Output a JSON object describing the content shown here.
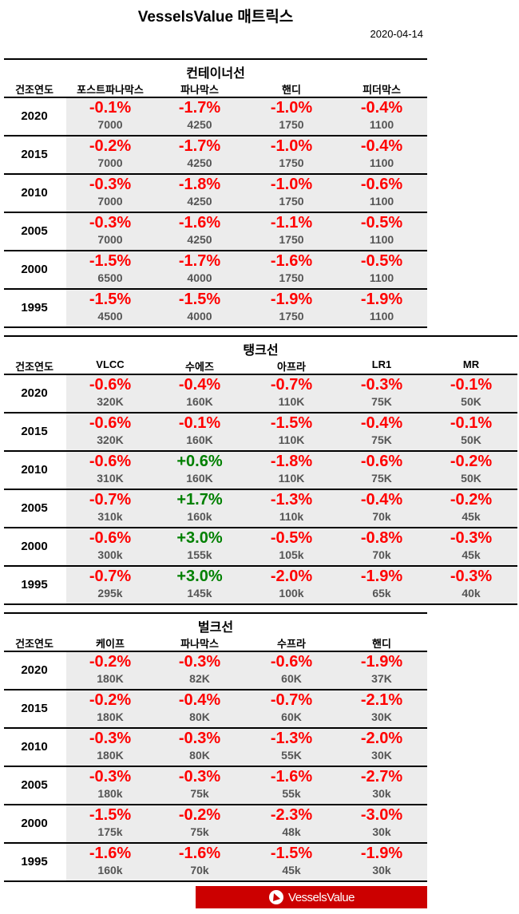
{
  "title": "VesselsValue 매트릭스",
  "date": "2020-04-14",
  "colors": {
    "negative": "#ff0000",
    "positive": "#008000",
    "band": "#ececec",
    "logo": "#cc0000"
  },
  "logo_text": "VesselsValue",
  "sections": [
    {
      "title": "컨테이너선",
      "year_header": "건조연도",
      "columns": [
        "포스트파나막스",
        "파나막스",
        "핸디",
        "피더막스"
      ],
      "rows": [
        {
          "year": "2020",
          "cells": [
            [
              "-0.1%",
              "7000"
            ],
            [
              "-1.7%",
              "4250"
            ],
            [
              "-1.0%",
              "1750"
            ],
            [
              "-0.4%",
              "1100"
            ]
          ]
        },
        {
          "year": "2015",
          "cells": [
            [
              "-0.2%",
              "7000"
            ],
            [
              "-1.7%",
              "4250"
            ],
            [
              "-1.0%",
              "1750"
            ],
            [
              "-0.4%",
              "1100"
            ]
          ]
        },
        {
          "year": "2010",
          "cells": [
            [
              "-0.3%",
              "7000"
            ],
            [
              "-1.8%",
              "4250"
            ],
            [
              "-1.0%",
              "1750"
            ],
            [
              "-0.6%",
              "1100"
            ]
          ]
        },
        {
          "year": "2005",
          "cells": [
            [
              "-0.3%",
              "7000"
            ],
            [
              "-1.6%",
              "4250"
            ],
            [
              "-1.1%",
              "1750"
            ],
            [
              "-0.5%",
              "1100"
            ]
          ]
        },
        {
          "year": "2000",
          "cells": [
            [
              "-1.5%",
              "6500"
            ],
            [
              "-1.7%",
              "4000"
            ],
            [
              "-1.6%",
              "1750"
            ],
            [
              "-0.5%",
              "1100"
            ]
          ]
        },
        {
          "year": "1995",
          "cells": [
            [
              "-1.5%",
              "4500"
            ],
            [
              "-1.5%",
              "4000"
            ],
            [
              "-1.9%",
              "1750"
            ],
            [
              "-1.9%",
              "1100"
            ]
          ]
        }
      ]
    },
    {
      "title": "탱크선",
      "year_header": "건조연도",
      "columns": [
        "VLCC",
        "수에즈",
        "아프라",
        "LR1",
        "MR"
      ],
      "rows": [
        {
          "year": "2020",
          "cells": [
            [
              "-0.6%",
              "320K"
            ],
            [
              "-0.4%",
              "160K"
            ],
            [
              "-0.7%",
              "110K"
            ],
            [
              "-0.3%",
              "75K"
            ],
            [
              "-0.1%",
              "50K"
            ]
          ]
        },
        {
          "year": "2015",
          "cells": [
            [
              "-0.6%",
              "320K"
            ],
            [
              "-0.1%",
              "160K"
            ],
            [
              "-1.5%",
              "110K"
            ],
            [
              "-0.4%",
              "75K"
            ],
            [
              "-0.1%",
              "50K"
            ]
          ]
        },
        {
          "year": "2010",
          "cells": [
            [
              "-0.6%",
              "310K"
            ],
            [
              "+0.6%",
              "160K"
            ],
            [
              "-1.8%",
              "110K"
            ],
            [
              "-0.6%",
              "75K"
            ],
            [
              "-0.2%",
              "50K"
            ]
          ]
        },
        {
          "year": "2005",
          "cells": [
            [
              "-0.7%",
              "310k"
            ],
            [
              "+1.7%",
              "160k"
            ],
            [
              "-1.3%",
              "110k"
            ],
            [
              "-0.4%",
              "70k"
            ],
            [
              "-0.2%",
              "45k"
            ]
          ]
        },
        {
          "year": "2000",
          "cells": [
            [
              "-0.6%",
              "300k"
            ],
            [
              "+3.0%",
              "155k"
            ],
            [
              "-0.5%",
              "105k"
            ],
            [
              "-0.8%",
              "70k"
            ],
            [
              "-0.3%",
              "45k"
            ]
          ]
        },
        {
          "year": "1995",
          "cells": [
            [
              "-0.7%",
              "295k"
            ],
            [
              "+3.0%",
              "145k"
            ],
            [
              "-2.0%",
              "100k"
            ],
            [
              "-1.9%",
              "65k"
            ],
            [
              "-0.3%",
              "40k"
            ]
          ]
        }
      ]
    },
    {
      "title": "벌크선",
      "year_header": "건조연도",
      "columns": [
        "케이프",
        "파나막스",
        "수프라",
        "핸디"
      ],
      "rows": [
        {
          "year": "2020",
          "cells": [
            [
              "-0.2%",
              "180K"
            ],
            [
              "-0.3%",
              "82K"
            ],
            [
              "-0.6%",
              "60K"
            ],
            [
              "-1.9%",
              "37K"
            ]
          ]
        },
        {
          "year": "2015",
          "cells": [
            [
              "-0.2%",
              "180K"
            ],
            [
              "-0.4%",
              "80K"
            ],
            [
              "-0.7%",
              "60K"
            ],
            [
              "-2.1%",
              "30K"
            ]
          ]
        },
        {
          "year": "2010",
          "cells": [
            [
              "-0.3%",
              "180K"
            ],
            [
              "-0.3%",
              "80K"
            ],
            [
              "-1.3%",
              "55K"
            ],
            [
              "-2.0%",
              "30K"
            ]
          ]
        },
        {
          "year": "2005",
          "cells": [
            [
              "-0.3%",
              "180k"
            ],
            [
              "-0.3%",
              "75k"
            ],
            [
              "-1.6%",
              "55k"
            ],
            [
              "-2.7%",
              "30k"
            ]
          ]
        },
        {
          "year": "2000",
          "cells": [
            [
              "-1.5%",
              "175k"
            ],
            [
              "-0.2%",
              "75k"
            ],
            [
              "-2.3%",
              "48k"
            ],
            [
              "-3.0%",
              "30k"
            ]
          ]
        },
        {
          "year": "1995",
          "cells": [
            [
              "-1.6%",
              "160k"
            ],
            [
              "-1.6%",
              "70k"
            ],
            [
              "-1.5%",
              "45k"
            ],
            [
              "-1.9%",
              "30k"
            ]
          ]
        }
      ]
    }
  ]
}
